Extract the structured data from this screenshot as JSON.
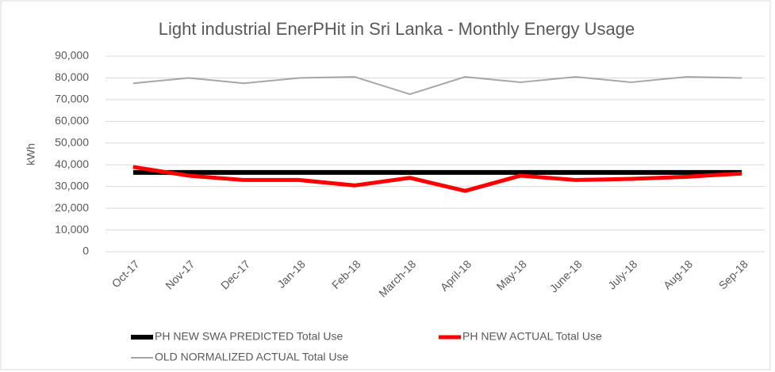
{
  "chart_data": {
    "type": "line",
    "title": "Light industrial EnerPHit in Sri Lanka - Monthly Energy Usage",
    "y_label": "kWh",
    "categories": [
      "Oct-17",
      "Nov-17",
      "Dec-17",
      "Jan-18",
      "Feb-18",
      "March-18",
      "April-18",
      "May-18",
      "June-18",
      "July-18",
      "Aug-18",
      "Sep-18"
    ],
    "series": [
      {
        "name": "PH NEW SWA PREDICTED Total Use",
        "color": "#000000",
        "values": [
          36500,
          36500,
          36500,
          36500,
          36500,
          36500,
          36500,
          36500,
          36500,
          36500,
          36500,
          36500
        ]
      },
      {
        "name": "PH NEW ACTUAL Total Use",
        "color": "#ff0000",
        "values": [
          39000,
          35000,
          33000,
          33000,
          30500,
          34000,
          28000,
          35000,
          33000,
          33500,
          34500,
          36000
        ]
      },
      {
        "name": "OLD NORMALIZED ACTUAL Total Use",
        "color": "#a6a6a6",
        "values": [
          77500,
          80000,
          77500,
          80000,
          80500,
          72500,
          80500,
          78000,
          80500,
          78000,
          80500,
          80000
        ]
      }
    ],
    "ylim": [
      0,
      90000
    ],
    "yticks": [
      0,
      {
        "value": 10000,
        "label": "10,000"
      },
      {
        "value": 20000,
        "label": "20,000"
      },
      {
        "value": 30000,
        "label": "30,000"
      },
      {
        "value": 40000,
        "label": "40,000"
      },
      {
        "value": 50000,
        "label": "50,000"
      },
      {
        "value": 60000,
        "label": "60,000"
      },
      {
        "value": 70000,
        "label": "70,000"
      },
      {
        "value": 80000,
        "label": "80,000"
      },
      {
        "value": 90000,
        "label": "90,000"
      }
    ],
    "grid": true
  }
}
